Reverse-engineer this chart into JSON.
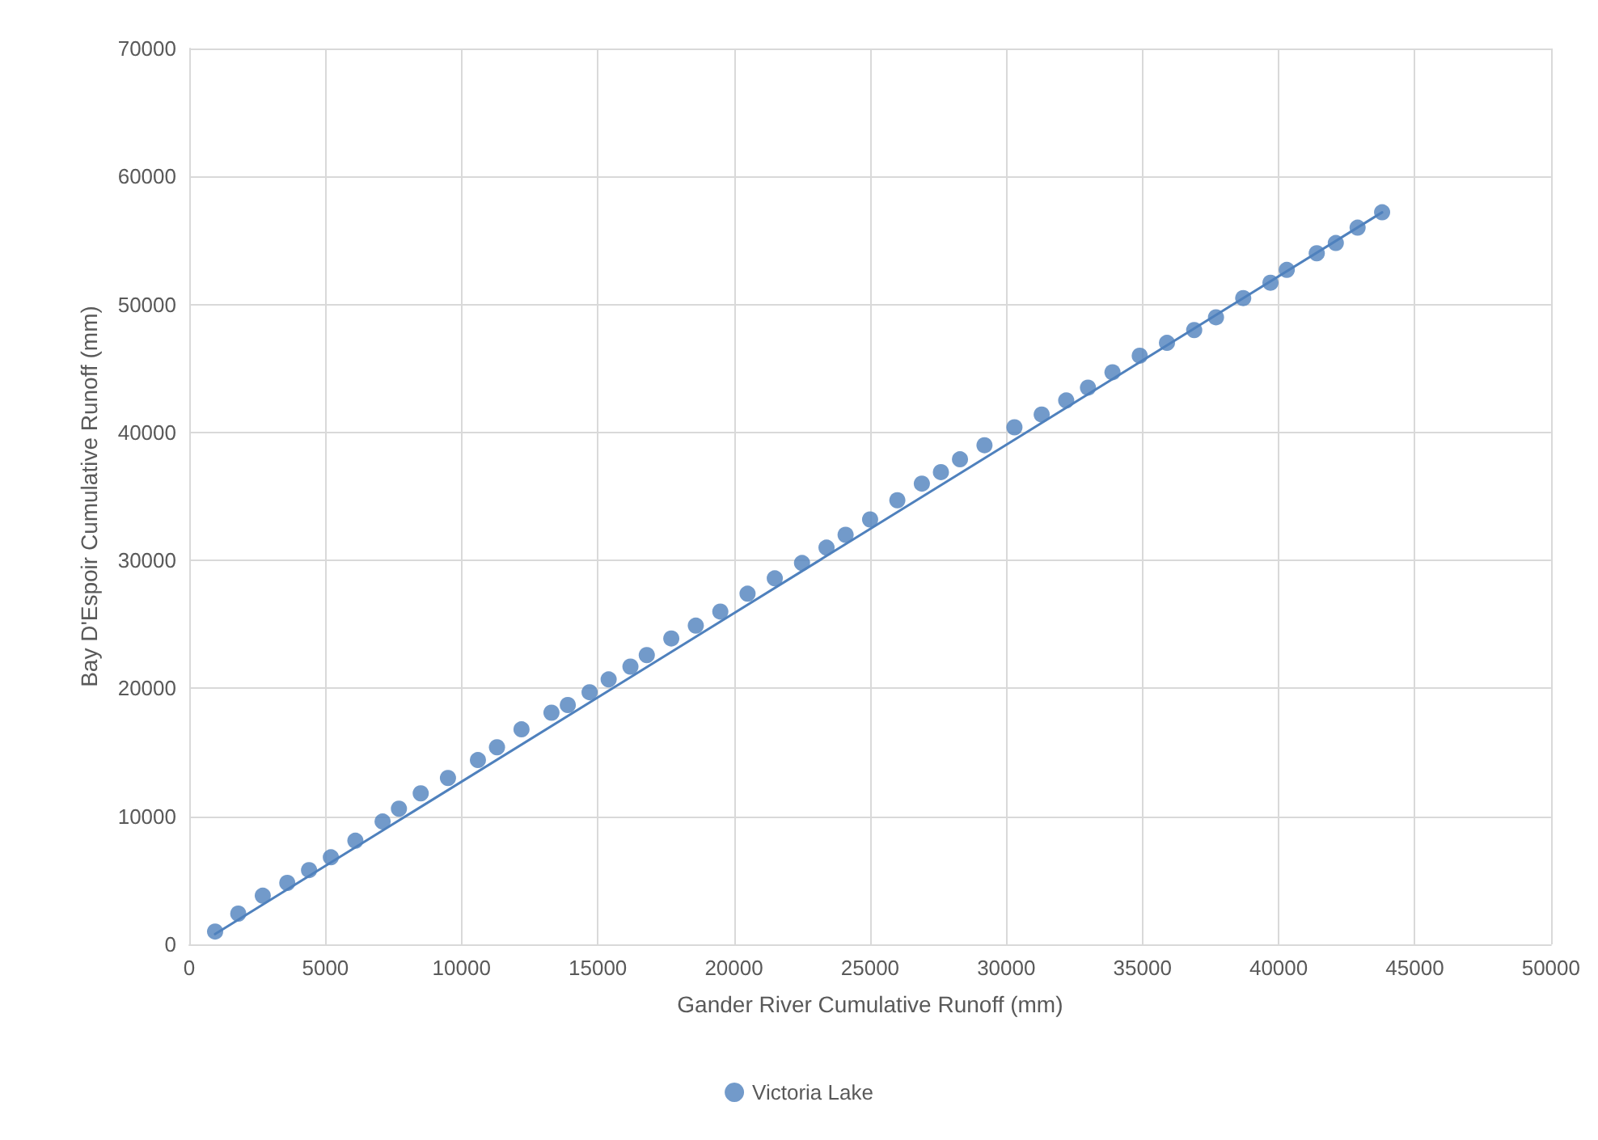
{
  "chart_data": {
    "type": "scatter",
    "xlabel": "Gander River Cumulative Runoff (mm)",
    "ylabel": "Bay D'Espoir Cumulative Runoff (mm)",
    "xlim": [
      0,
      50000
    ],
    "xticks": [
      0,
      5000,
      10000,
      15000,
      20000,
      25000,
      30000,
      35000,
      40000,
      45000,
      50000
    ],
    "ylim": [
      0,
      70000
    ],
    "yticks": [
      0,
      10000,
      20000,
      30000,
      40000,
      50000,
      60000,
      70000
    ],
    "grid": true,
    "legend": "bottom",
    "marker": "circle",
    "series": [
      {
        "name": "Victoria Lake",
        "color": "#4f81bd",
        "x": [
          950,
          1800,
          2700,
          3600,
          4400,
          5200,
          6100,
          7100,
          7700,
          8500,
          9500,
          10600,
          11300,
          12200,
          13300,
          13900,
          14700,
          15400,
          16200,
          16800,
          17700,
          18600,
          19500,
          20500,
          21500,
          22500,
          23400,
          24100,
          25000,
          26000,
          26900,
          27600,
          28300,
          29200,
          30300,
          31300,
          32200,
          33000,
          33900,
          34900,
          35900,
          36900,
          37700,
          38700,
          39700,
          40300,
          41400,
          42100,
          42900,
          43800
        ],
        "values": [
          1000,
          2400,
          3800,
          4800,
          5800,
          6800,
          8100,
          9600,
          10600,
          11800,
          13000,
          14400,
          15400,
          16800,
          18100,
          18700,
          19700,
          20700,
          21700,
          22600,
          23900,
          24900,
          26000,
          27400,
          28600,
          29800,
          31000,
          32000,
          33200,
          34700,
          36000,
          36900,
          37900,
          39000,
          40400,
          41400,
          42500,
          43500,
          44700,
          46000,
          47000,
          48000,
          49000,
          50500,
          51700,
          52700,
          54000,
          54800,
          56000,
          57200
        ]
      },
      {
        "type": "line",
        "color": "#4f81bd",
        "line_style": "solid",
        "marker": "none",
        "x": [
          950,
          43800
        ],
        "values": [
          800,
          57200
        ]
      }
    ]
  }
}
